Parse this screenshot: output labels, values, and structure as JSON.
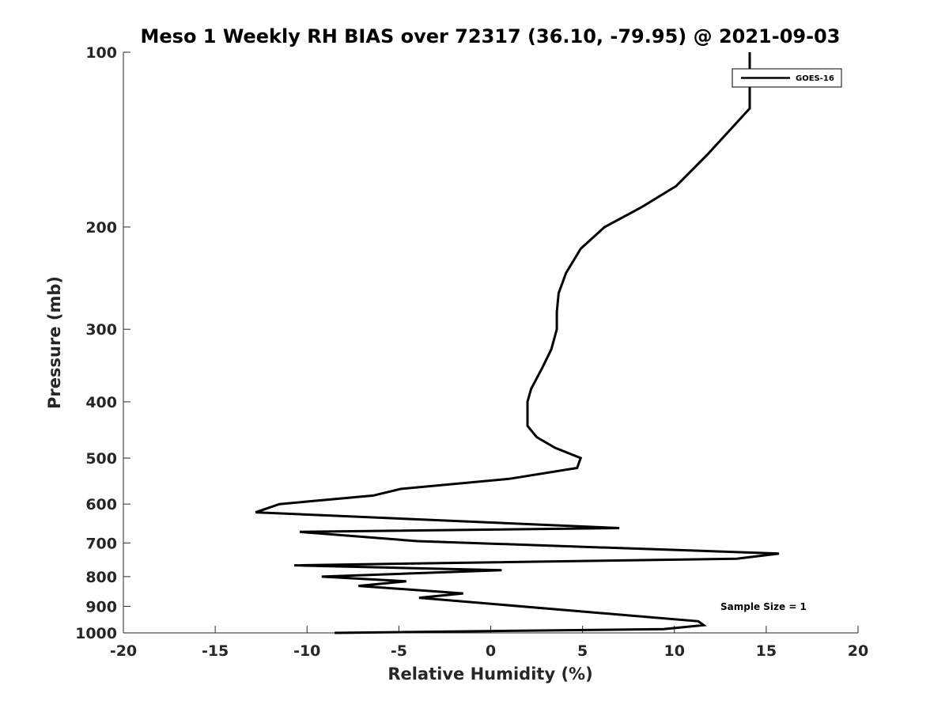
{
  "chart_data": {
    "type": "line",
    "title": "Meso 1 Weekly RH BIAS over 72317 (36.10, -79.95) @ 2021-09-03",
    "xlabel": "Relative Humidity (%)",
    "ylabel": "Pressure (mb)",
    "xlim": [
      -20,
      20
    ],
    "ylim": [
      100,
      1000
    ],
    "y_scale": "log",
    "y_reversed": true,
    "x_ticks": [
      -20,
      -15,
      -10,
      -5,
      0,
      5,
      10,
      15,
      20
    ],
    "x_tick_labels": [
      "-20",
      "-15",
      "-10",
      "-5",
      "0",
      "5",
      "10",
      "15",
      "20"
    ],
    "y_ticks": [
      100,
      200,
      300,
      400,
      500,
      600,
      700,
      800,
      900,
      1000
    ],
    "y_tick_labels": [
      "100",
      "200",
      "300",
      "400",
      "500",
      "600",
      "700",
      "800",
      "900",
      "1000"
    ],
    "grid": false,
    "legend_position": "top-right",
    "series_color": "#000000",
    "series": [
      {
        "name": "GOES-16",
        "points": [
          [
            14.1,
            100
          ],
          [
            14.1,
            110
          ],
          [
            14.1,
            125
          ],
          [
            11.8,
            150
          ],
          [
            10.1,
            170
          ],
          [
            8.2,
            185
          ],
          [
            6.2,
            200
          ],
          [
            4.9,
            218
          ],
          [
            4.1,
            240
          ],
          [
            3.7,
            260
          ],
          [
            3.6,
            280
          ],
          [
            3.6,
            300
          ],
          [
            3.3,
            325
          ],
          [
            2.8,
            350
          ],
          [
            2.2,
            380
          ],
          [
            2.0,
            400
          ],
          [
            2.0,
            420
          ],
          [
            2.0,
            440
          ],
          [
            2.5,
            460
          ],
          [
            3.5,
            480
          ],
          [
            4.9,
            500
          ],
          [
            4.7,
            520
          ],
          [
            1.0,
            543
          ],
          [
            -4.9,
            565
          ],
          [
            -6.4,
            580
          ],
          [
            -11.5,
            600
          ],
          [
            -12.8,
            620
          ],
          [
            7.0,
            660
          ],
          [
            -10.4,
            670
          ],
          [
            -4.0,
            695
          ],
          [
            15.7,
            730
          ],
          [
            13.4,
            745
          ],
          [
            -10.7,
            765
          ],
          [
            0.6,
            780
          ],
          [
            -9.2,
            800
          ],
          [
            -4.6,
            815
          ],
          [
            -7.2,
            830
          ],
          [
            -1.5,
            855
          ],
          [
            -3.9,
            870
          ],
          [
            11.3,
            955
          ],
          [
            11.6,
            970
          ],
          [
            9.4,
            985
          ],
          [
            -8.5,
            1000
          ]
        ]
      }
    ],
    "annotations": [
      "Sample Size = 1"
    ]
  }
}
